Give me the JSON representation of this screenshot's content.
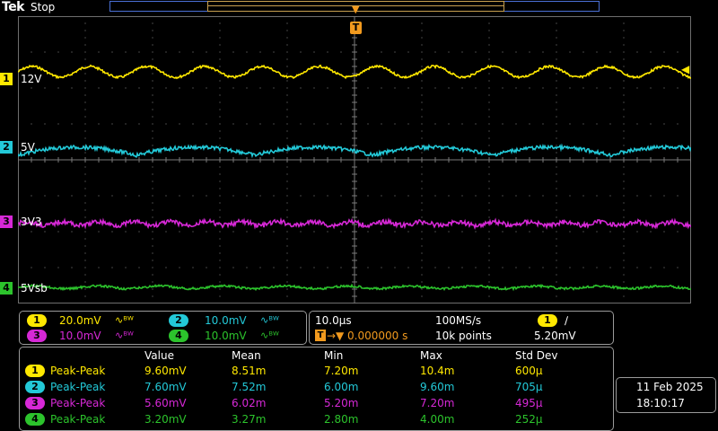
{
  "header": {
    "brand": "Tek",
    "run_state": "Stop"
  },
  "trigger": {
    "marker": "T"
  },
  "colors": {
    "ch1": "#ffe800",
    "ch2": "#23c9d8",
    "ch3": "#d628d6",
    "ch4": "#2cc32c",
    "trigger": "#f29a1e",
    "grid": "#8a8a8a"
  },
  "channels": [
    {
      "num": "1",
      "label": "12V",
      "color": "#ffe800",
      "scale": "20.0mV",
      "bw_icon": "∿ᴮᵂ"
    },
    {
      "num": "2",
      "label": "5V",
      "color": "#23c9d8",
      "scale": "10.0mV",
      "bw_icon": "∿ᴮᵂ"
    },
    {
      "num": "3",
      "label": "3V3",
      "color": "#d628d6",
      "scale": "10.0mV",
      "bw_icon": "∿ᴮᵂ"
    },
    {
      "num": "4",
      "label": "5Vsb",
      "color": "#2cc32c",
      "scale": "10.0mV",
      "bw_icon": "∿ᴮᵂ"
    }
  ],
  "timebase": {
    "horizontal_scale": "10.0μs",
    "sample_rate": "100MS/s",
    "trigger_position": "0.000000 s",
    "record_length": "10k points",
    "trigger_source": "1",
    "trigger_slope": "∕",
    "trigger_level": "5.20mV"
  },
  "measurements": {
    "headers": [
      "Value",
      "Mean",
      "Min",
      "Max",
      "Std Dev"
    ],
    "rows": [
      {
        "ch": "1",
        "name": "Peak-Peak",
        "color": "#ffe800",
        "values": [
          "9.60mV",
          "8.51m",
          "7.20m",
          "10.4m",
          "600μ"
        ]
      },
      {
        "ch": "2",
        "name": "Peak-Peak",
        "color": "#23c9d8",
        "values": [
          "7.60mV",
          "7.52m",
          "6.00m",
          "9.60m",
          "705μ"
        ]
      },
      {
        "ch": "3",
        "name": "Peak-Peak",
        "color": "#d628d6",
        "values": [
          "5.60mV",
          "6.02m",
          "5.20m",
          "7.20m",
          "495μ"
        ]
      },
      {
        "ch": "4",
        "name": "Peak-Peak",
        "color": "#2cc32c",
        "values": [
          "3.20mV",
          "3.27m",
          "2.80m",
          "4.00m",
          "252μ"
        ]
      }
    ]
  },
  "datetime": {
    "date": "11 Feb  2025",
    "time": "18:10:17"
  }
}
